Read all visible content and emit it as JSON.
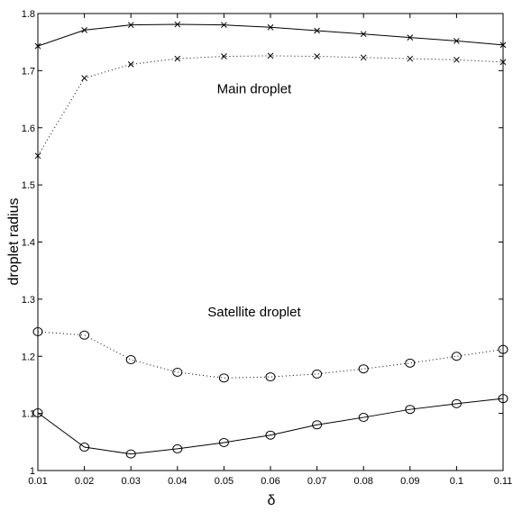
{
  "chart_data": {
    "type": "line",
    "title": "",
    "xlabel": "δ",
    "ylabel": "droplet radius",
    "xlim": [
      0.01,
      0.11
    ],
    "ylim": [
      1.0,
      1.8
    ],
    "x_ticks": [
      "0.01",
      "0.02",
      "0.03",
      "0.04",
      "0.05",
      "0.06",
      "0.07",
      "0.08",
      "0.09",
      "0.1",
      "0.11"
    ],
    "y_ticks": [
      "1",
      "1.1",
      "1.2",
      "1.3",
      "1.4",
      "1.5",
      "1.6",
      "1.7",
      "1.8"
    ],
    "grid": false,
    "x": [
      0.01,
      0.02,
      0.03,
      0.04,
      0.05,
      0.06,
      0.07,
      0.08,
      0.09,
      0.1,
      0.11
    ],
    "series": [
      {
        "style": "solid",
        "marker": "x",
        "color": "#000000",
        "values": [
          1.743,
          1.771,
          1.78,
          1.781,
          1.78,
          1.776,
          1.77,
          1.764,
          1.758,
          1.752,
          1.745
        ]
      },
      {
        "style": "dotted",
        "marker": "x",
        "color": "#000000",
        "values": [
          1.551,
          1.687,
          1.711,
          1.721,
          1.725,
          1.726,
          1.725,
          1.723,
          1.721,
          1.719,
          1.715
        ]
      },
      {
        "style": "dotted",
        "marker": "o",
        "color": "#000000",
        "values": [
          1.243,
          1.237,
          1.194,
          1.172,
          1.162,
          1.164,
          1.169,
          1.178,
          1.188,
          1.2,
          1.212
        ]
      },
      {
        "style": "solid",
        "marker": "o",
        "color": "#000000",
        "values": [
          1.101,
          1.041,
          1.029,
          1.038,
          1.049,
          1.062,
          1.08,
          1.093,
          1.107,
          1.117,
          1.126
        ]
      }
    ],
    "annotations": [
      {
        "text": "Main droplet",
        "x": 0.0565,
        "y": 1.66
      },
      {
        "text": "Satellite droplet",
        "x": 0.0565,
        "y": 1.27
      }
    ]
  }
}
